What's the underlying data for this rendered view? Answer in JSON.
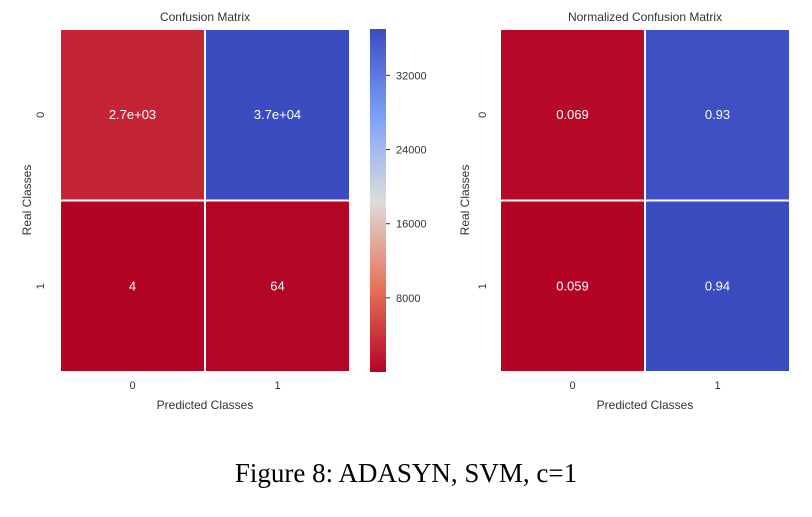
{
  "caption": "Figure 8: ADASYN, SVM, c=1",
  "colors": {
    "low": "#b40426",
    "mid": "#dddcdc",
    "high": "#3b4cc0",
    "cell_border": "#ffffff",
    "text": "#333333"
  },
  "chart_data": [
    {
      "type": "heatmap",
      "title": "Confusion Matrix",
      "xlabel": "Predicted Classes",
      "ylabel": "Real Classes",
      "x_ticks": [
        "0",
        "1"
      ],
      "y_ticks": [
        "0",
        "1"
      ],
      "values": [
        [
          2700,
          37000
        ],
        [
          4,
          64
        ]
      ],
      "annotations": [
        [
          "2.7e+03",
          "3.7e+04"
        ],
        [
          "4",
          "64"
        ]
      ],
      "colorbar": {
        "vmin": 4,
        "vmax": 37000,
        "ticks": [
          8000,
          16000,
          24000,
          32000
        ],
        "tick_labels": [
          "8000",
          "16000",
          "24000",
          "32000"
        ],
        "colormap": "coolwarm_r"
      }
    },
    {
      "type": "heatmap",
      "title": "Normalized Confusion Matrix",
      "xlabel": "Predicted Classes",
      "ylabel": "Real Classes",
      "x_ticks": [
        "0",
        "1"
      ],
      "y_ticks": [
        "0",
        "1"
      ],
      "values": [
        [
          0.069,
          0.93
        ],
        [
          0.059,
          0.94
        ]
      ],
      "annotations": [
        [
          "0.069",
          "0.93"
        ],
        [
          "0.059",
          "0.94"
        ]
      ],
      "vmin": 0.059,
      "vmax": 0.94,
      "colormap": "coolwarm_r"
    }
  ]
}
